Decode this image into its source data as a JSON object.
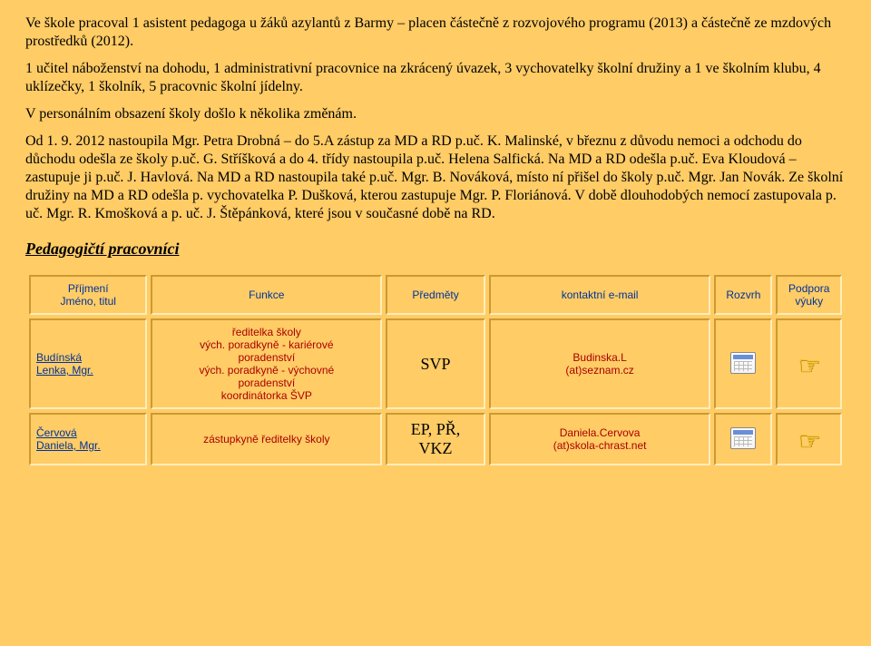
{
  "paragraphs": {
    "p1": "Ve škole pracoval 1 asistent pedagoga u žáků azylantů z Barmy – placen částečně z rozvojového programu (2013) a částečně ze mzdových prostředků (2012).",
    "p2": "1 učitel náboženství na dohodu, 1 administrativní pracovnice na zkrácený úvazek, 3 vychovatelky školní družiny a 1 ve školním klubu, 4 uklízečky, 1 školník, 5 pracovnic školní jídelny.",
    "p3": "V personálním obsazení školy došlo k několika změnám.",
    "p4": "Od 1. 9. 2012 nastoupila Mgr. Petra Drobná – do 5.A zástup za MD a RD p.uč. K. Malinské, v březnu z důvodu nemoci a odchodu do důchodu odešla ze školy p.uč. G. Stříšková a do 4. třídy nastoupila p.uč. Helena Salfická. Na MD a RD odešla p.uč. Eva Kloudová – zastupuje ji p.uč. J. Havlová. Na MD a RD nastoupila také p.uč. Mgr. B. Nováková, místo ní přišel do školy p.uč. Mgr. Jan Novák. Ze školní družiny na MD a RD odešla p. vychovatelka P. Dušková, kterou zastupuje Mgr. P. Floriánová. V době dlouhodobých nemocí zastupovala p. uč. Mgr. R. Kmošková a p. uč. J. Štěpánková, které jsou v současné době na RD."
  },
  "section_title": "Pedagogičtí pracovníci",
  "table": {
    "headers": {
      "name": "Příjmení\nJméno, titul",
      "func": "Funkce",
      "subj": "Předměty",
      "email": "kontaktní e-mail",
      "rozvrh": "Rozvrh",
      "support": "Podpora\nvýuky"
    },
    "rows": [
      {
        "name": "Budínská\nLenka, Mgr.",
        "func": "ředitelka školy\nvých. poradkyně - kariérové\nporadenství\nvých. poradkyně - výchovné\nporadenství\nkoordinátorka ŠVP",
        "subj": "SVP",
        "email": "Budinska.L\n(at)seznam.cz"
      },
      {
        "name": "Červová\nDaniela, Mgr.",
        "func": "zástupkyně ředitelky školy",
        "subj": "EP, PŘ,\nVKZ",
        "email": "Daniela.Cervova\n(at)skola-chrast.net"
      }
    ]
  }
}
